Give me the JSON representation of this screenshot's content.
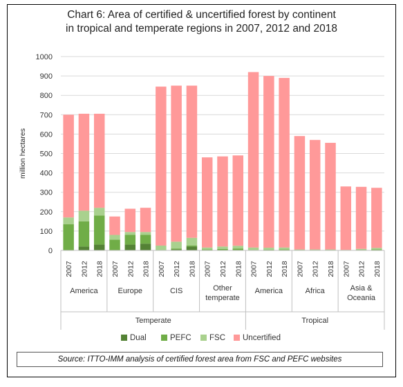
{
  "title_line1": "Chart 6: Area of certified & uncertified forest by continent",
  "title_line2": "in tropical and temperate regions in 2007, 2012 and 2018",
  "source": "Source: ITTO-IMM analysis of certified forest area from FSC and PEFC websites",
  "colors": {
    "Dual": "#548235",
    "PEFC": "#70ad47",
    "FSC": "#a9d18e",
    "Uncertified": "#ff9999"
  },
  "chart_data": {
    "type": "bar",
    "stacked": true,
    "ylabel": "million hectares",
    "ylim": [
      0,
      1000
    ],
    "yticks": [
      0,
      100,
      200,
      300,
      400,
      500,
      600,
      700,
      800,
      900,
      1000
    ],
    "years": [
      "2007",
      "2012",
      "2018"
    ],
    "groups": [
      {
        "label": "America",
        "region": "Temperate"
      },
      {
        "label": "Europe",
        "region": "Temperate"
      },
      {
        "label": "CIS",
        "region": "Temperate"
      },
      {
        "label": "Other temperate",
        "region": "Temperate"
      },
      {
        "label": "America",
        "region": "Tropical"
      },
      {
        "label": "Africa",
        "region": "Tropical"
      },
      {
        "label": "Asia & Oceania",
        "region": "Tropical"
      }
    ],
    "regions": [
      "Temperate",
      "Tropical"
    ],
    "series": [
      {
        "name": "Dual",
        "values": [
          0,
          20,
          30,
          0,
          30,
          35,
          0,
          5,
          20,
          0,
          0,
          0,
          0,
          0,
          0,
          0,
          0,
          0,
          0,
          0,
          0
        ]
      },
      {
        "name": "PEFC",
        "values": [
          135,
          130,
          150,
          55,
          50,
          45,
          0,
          5,
          5,
          5,
          8,
          10,
          3,
          4,
          5,
          0,
          0,
          0,
          0,
          3,
          5
        ]
      },
      {
        "name": "FSC",
        "values": [
          35,
          55,
          40,
          25,
          15,
          15,
          25,
          35,
          40,
          10,
          12,
          14,
          12,
          10,
          10,
          5,
          5,
          5,
          3,
          5,
          8
        ]
      },
      {
        "name": "Uncertified",
        "values": [
          530,
          500,
          485,
          95,
          120,
          125,
          820,
          805,
          785,
          465,
          465,
          466,
          905,
          886,
          875,
          585,
          565,
          550,
          327,
          320,
          310
        ]
      }
    ]
  }
}
